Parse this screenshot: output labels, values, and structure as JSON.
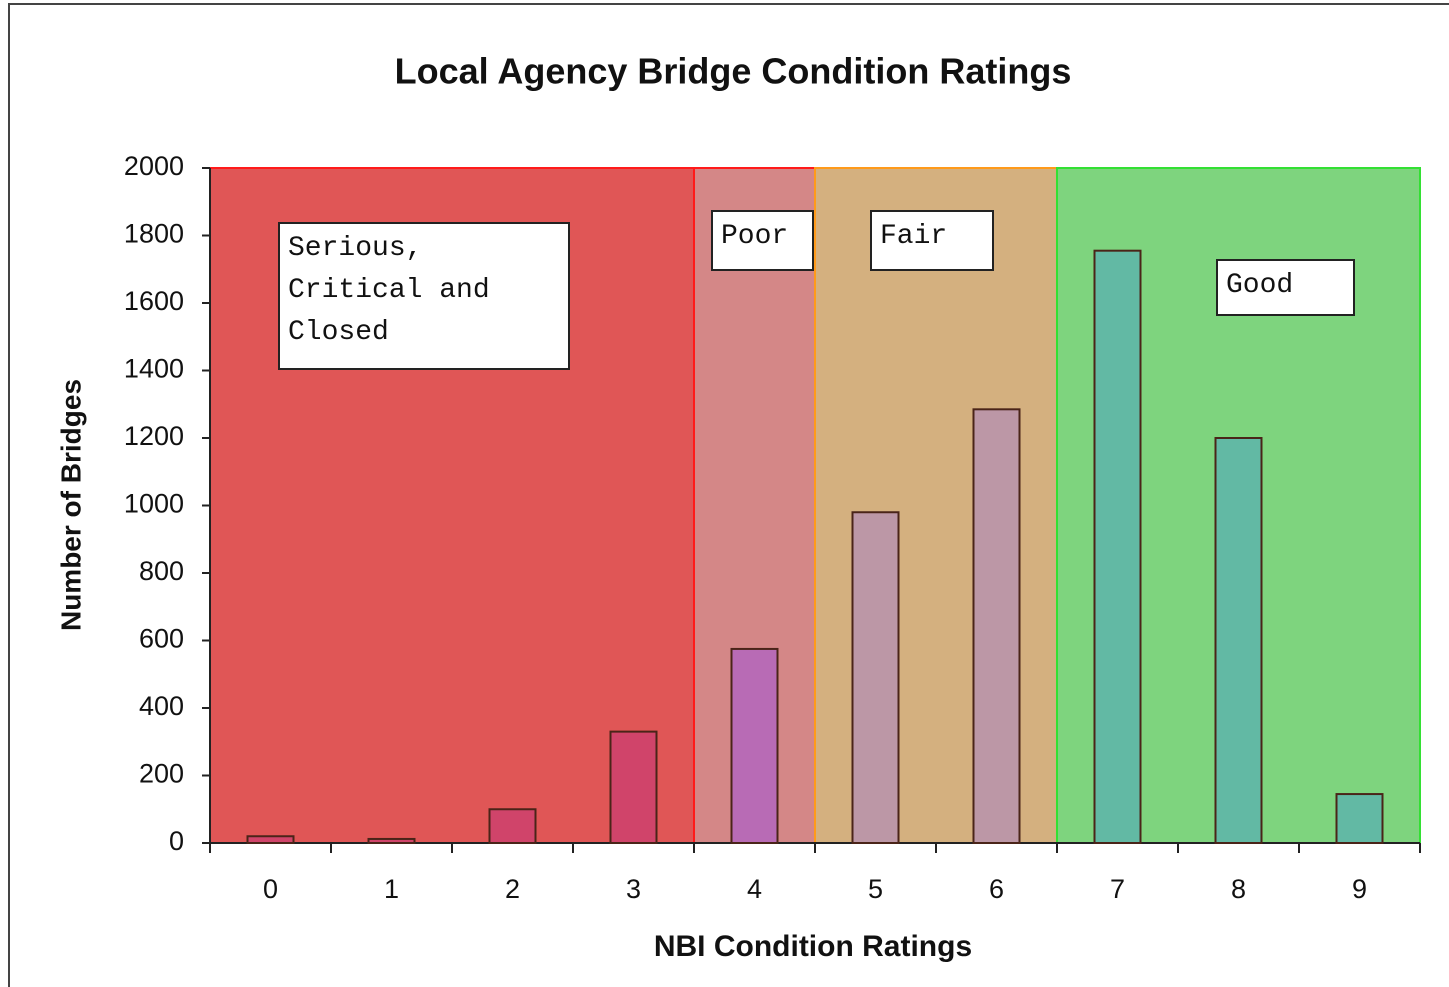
{
  "chart_data": {
    "type": "bar",
    "title": "Local Agency Bridge Condition Ratings",
    "x_label": "NBI Condition Ratings",
    "y_label": "Number of Bridges",
    "categories": [
      "0",
      "1",
      "2",
      "3",
      "4",
      "5",
      "6",
      "7",
      "8",
      "9"
    ],
    "values": [
      20,
      12,
      100,
      330,
      575,
      980,
      1285,
      1755,
      1200,
      145
    ],
    "ylim": [
      0,
      2000
    ],
    "yticks": [
      0,
      200,
      400,
      600,
      800,
      1000,
      1200,
      1400,
      1600,
      1800,
      2000
    ],
    "bands": [
      {
        "label": "Serious, Critical and Closed",
        "categories": [
          "0",
          "1",
          "2",
          "3"
        ],
        "color": "#e05656",
        "border": "#ff1a1a",
        "bar_color": "#d0446a"
      },
      {
        "label": "Poor",
        "categories": [
          "4"
        ],
        "color": "#d48787",
        "border": "#ff1a1a",
        "bar_color": "#b86bb5"
      },
      {
        "label": "Fair",
        "categories": [
          "5",
          "6"
        ],
        "color": "#d4b07f",
        "border": "#ff9a1a",
        "bar_color": "#bc97a6"
      },
      {
        "label": "Good",
        "categories": [
          "7",
          "8",
          "9"
        ],
        "color": "#7ed47e",
        "border": "#33e033",
        "bar_color": "#62b9a4"
      }
    ]
  }
}
